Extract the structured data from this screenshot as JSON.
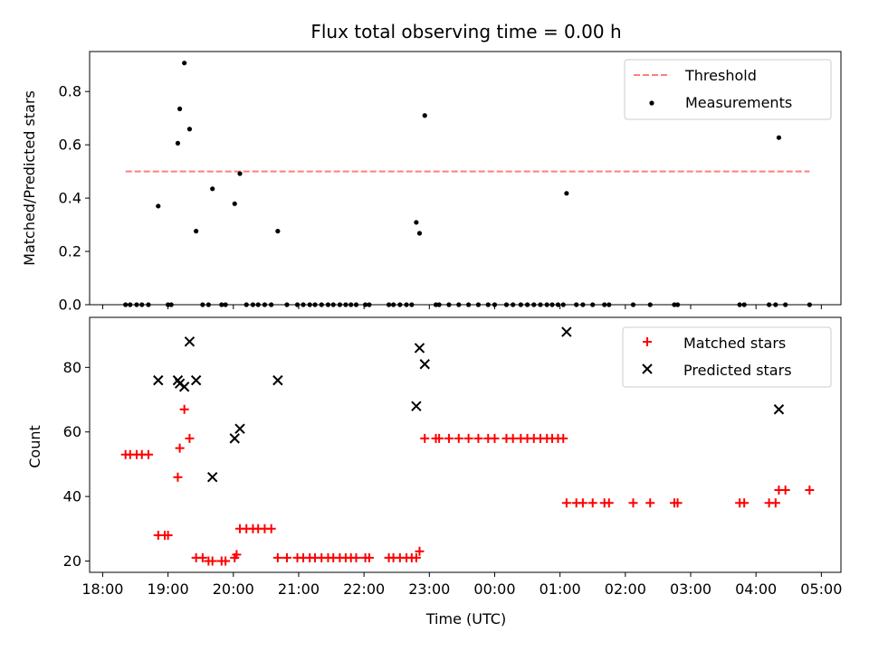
{
  "chart_data": [
    {
      "type": "scatter",
      "title": "Flux total observing time = 0.00 h",
      "xlabel": "",
      "ylabel": "Matched/Predicted stars",
      "xlim": [
        17.8,
        29.3
      ],
      "ylim": [
        0,
        0.95
      ],
      "x_ticks": [
        18,
        19,
        20,
        21,
        22,
        23,
        24,
        25,
        26,
        27,
        28,
        29
      ],
      "x_tick_labels_shown": false,
      "y_ticks": [
        0,
        0.2,
        0.4,
        0.6,
        0.8
      ],
      "y_tick_labels": [
        "0.0",
        "0.2",
        "0.4",
        "0.6",
        "0.8"
      ],
      "grid": false,
      "legend_position": "upper-right",
      "threshold": {
        "name": "Threshold",
        "y": 0.5,
        "x_range": [
          18.35,
          28.82
        ],
        "color": "#ff7f7f",
        "style": "dashed"
      },
      "series": [
        {
          "name": "Measurements",
          "color": "#000000",
          "marker": "dot",
          "x": [
            18.35,
            18.42,
            18.52,
            18.6,
            18.7,
            18.85,
            19.0,
            19.05,
            19.15,
            19.18,
            19.25,
            19.33,
            19.43,
            19.53,
            19.62,
            19.68,
            19.82,
            19.88,
            20.02,
            20.1,
            20.2,
            20.3,
            20.38,
            20.48,
            20.58,
            20.68,
            20.82,
            20.98,
            21.07,
            21.17,
            21.25,
            21.35,
            21.45,
            21.53,
            21.63,
            21.72,
            21.8,
            21.88,
            22.02,
            22.08,
            22.38,
            22.45,
            22.55,
            22.65,
            22.73,
            22.8,
            22.85,
            22.93,
            23.1,
            23.15,
            23.3,
            23.45,
            23.6,
            23.75,
            23.9,
            24.0,
            24.18,
            24.28,
            24.4,
            24.5,
            24.6,
            24.7,
            24.8,
            24.88,
            24.97,
            25.05,
            25.1,
            25.25,
            25.35,
            25.5,
            25.68,
            25.75,
            26.12,
            26.38,
            26.75,
            26.8,
            27.75,
            27.82,
            28.2,
            28.3,
            28.35,
            28.45,
            28.82
          ],
          "y": [
            0,
            0,
            0,
            0,
            0,
            0.37,
            0,
            0,
            0.606,
            0.735,
            0.907,
            0.659,
            0.276,
            0,
            0,
            0.435,
            0,
            0,
            0.379,
            0.492,
            0,
            0,
            0,
            0,
            0,
            0.276,
            0,
            0,
            0,
            0,
            0,
            0,
            0,
            0,
            0,
            0,
            0,
            0,
            0,
            0,
            0,
            0,
            0,
            0,
            0,
            0.309,
            0.268,
            0.71,
            0,
            0,
            0,
            0,
            0,
            0,
            0,
            0,
            0,
            0,
            0,
            0,
            0,
            0,
            0,
            0,
            0,
            0,
            0.418,
            0,
            0,
            0,
            0,
            0,
            0,
            0,
            0,
            0,
            0,
            0,
            0,
            0,
            0.627,
            0,
            0
          ]
        }
      ]
    },
    {
      "type": "scatter",
      "title": "",
      "xlabel": "Time (UTC)",
      "ylabel": "Count",
      "xlim": [
        17.8,
        29.3
      ],
      "ylim": [
        16.5,
        95.5
      ],
      "x_ticks": [
        18,
        19,
        20,
        21,
        22,
        23,
        24,
        25,
        26,
        27,
        28,
        29
      ],
      "x_tick_labels": [
        "18:00",
        "19:00",
        "20:00",
        "21:00",
        "22:00",
        "23:00",
        "00:00",
        "01:00",
        "02:00",
        "03:00",
        "04:00",
        "05:00"
      ],
      "y_ticks": [
        20,
        40,
        60,
        80
      ],
      "y_tick_labels": [
        "20",
        "40",
        "60",
        "80"
      ],
      "grid": false,
      "legend_position": "upper-right",
      "series": [
        {
          "name": "Matched stars",
          "color": "#ff0000",
          "marker": "plus",
          "points": [
            [
              18.35,
              53
            ],
            [
              18.42,
              53
            ],
            [
              18.52,
              53
            ],
            [
              18.6,
              53
            ],
            [
              18.7,
              53
            ],
            [
              18.85,
              28
            ],
            [
              18.95,
              28
            ],
            [
              19.0,
              28
            ],
            [
              19.15,
              46
            ],
            [
              19.18,
              55
            ],
            [
              19.25,
              67
            ],
            [
              19.33,
              58
            ],
            [
              19.43,
              21
            ],
            [
              19.53,
              21
            ],
            [
              19.62,
              20
            ],
            [
              19.68,
              20
            ],
            [
              19.82,
              20
            ],
            [
              19.88,
              20
            ],
            [
              20.02,
              21
            ],
            [
              20.05,
              22
            ],
            [
              20.1,
              30
            ],
            [
              20.2,
              30
            ],
            [
              20.3,
              30
            ],
            [
              20.38,
              30
            ],
            [
              20.48,
              30
            ],
            [
              20.58,
              30
            ],
            [
              20.68,
              21
            ],
            [
              20.82,
              21
            ],
            [
              20.98,
              21
            ],
            [
              21.07,
              21
            ],
            [
              21.17,
              21
            ],
            [
              21.25,
              21
            ],
            [
              21.35,
              21
            ],
            [
              21.45,
              21
            ],
            [
              21.53,
              21
            ],
            [
              21.63,
              21
            ],
            [
              21.72,
              21
            ],
            [
              21.8,
              21
            ],
            [
              21.88,
              21
            ],
            [
              22.02,
              21
            ],
            [
              22.08,
              21
            ],
            [
              22.38,
              21
            ],
            [
              22.45,
              21
            ],
            [
              22.55,
              21
            ],
            [
              22.65,
              21
            ],
            [
              22.73,
              21
            ],
            [
              22.8,
              21
            ],
            [
              22.85,
              23
            ],
            [
              22.93,
              58
            ],
            [
              23.1,
              58
            ],
            [
              23.15,
              58
            ],
            [
              23.3,
              58
            ],
            [
              23.45,
              58
            ],
            [
              23.6,
              58
            ],
            [
              23.75,
              58
            ],
            [
              23.9,
              58
            ],
            [
              24.0,
              58
            ],
            [
              24.18,
              58
            ],
            [
              24.28,
              58
            ],
            [
              24.4,
              58
            ],
            [
              24.5,
              58
            ],
            [
              24.6,
              58
            ],
            [
              24.7,
              58
            ],
            [
              24.8,
              58
            ],
            [
              24.88,
              58
            ],
            [
              24.97,
              58
            ],
            [
              25.05,
              58
            ],
            [
              25.1,
              38
            ],
            [
              25.25,
              38
            ],
            [
              25.35,
              38
            ],
            [
              25.5,
              38
            ],
            [
              25.68,
              38
            ],
            [
              25.75,
              38
            ],
            [
              26.12,
              38
            ],
            [
              26.38,
              38
            ],
            [
              26.75,
              38
            ],
            [
              26.8,
              38
            ],
            [
              27.75,
              38
            ],
            [
              27.82,
              38
            ],
            [
              28.2,
              38
            ],
            [
              28.3,
              38
            ],
            [
              28.35,
              42
            ],
            [
              28.45,
              42
            ],
            [
              28.82,
              42
            ]
          ]
        },
        {
          "name": "Predicted stars",
          "color": "#000000",
          "marker": "x",
          "points": [
            [
              18.85,
              76
            ],
            [
              19.15,
              76
            ],
            [
              19.18,
              75
            ],
            [
              19.25,
              74
            ],
            [
              19.33,
              88
            ],
            [
              19.43,
              76
            ],
            [
              19.68,
              46
            ],
            [
              20.02,
              58
            ],
            [
              20.1,
              61
            ],
            [
              20.68,
              76
            ],
            [
              22.8,
              68
            ],
            [
              22.85,
              86
            ],
            [
              22.93,
              81
            ],
            [
              25.1,
              91
            ],
            [
              28.35,
              67
            ]
          ]
        }
      ]
    }
  ]
}
